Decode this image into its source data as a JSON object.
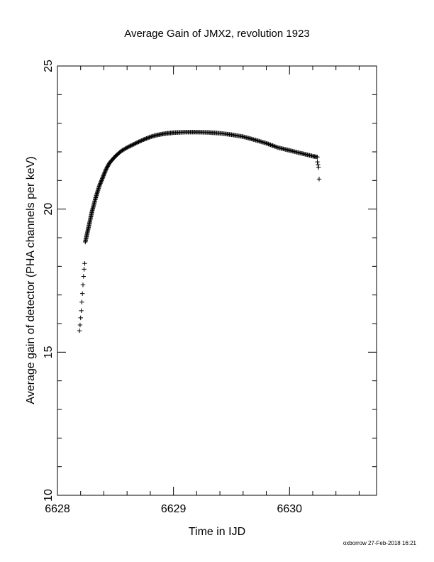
{
  "chart_data": {
    "type": "scatter",
    "title": "Average Gain of JMX2, revolution 1923",
    "xlabel": "Time in IJD",
    "ylabel": "Average gain of detector (PHA channels per keV)",
    "xlim": [
      6628,
      6630.75
    ],
    "ylim": [
      10,
      25
    ],
    "xticks": [
      6628,
      6629,
      6630
    ],
    "yticks": [
      10,
      15,
      20,
      25
    ],
    "marker": "+",
    "grid": false,
    "credit": "oxborrow 27-Feb-2018 16:21",
    "curve": [
      [
        6628.24,
        18.85
      ],
      [
        6628.27,
        19.4
      ],
      [
        6628.3,
        19.95
      ],
      [
        6628.33,
        20.4
      ],
      [
        6628.36,
        20.8
      ],
      [
        6628.39,
        21.1
      ],
      [
        6628.42,
        21.4
      ],
      [
        6628.45,
        21.62
      ],
      [
        6628.5,
        21.85
      ],
      [
        6628.55,
        22.03
      ],
      [
        6628.6,
        22.15
      ],
      [
        6628.65,
        22.25
      ],
      [
        6628.7,
        22.35
      ],
      [
        6628.75,
        22.44
      ],
      [
        6628.8,
        22.52
      ],
      [
        6628.85,
        22.58
      ],
      [
        6628.9,
        22.62
      ],
      [
        6628.95,
        22.65
      ],
      [
        6629.0,
        22.67
      ],
      [
        6629.1,
        22.69
      ],
      [
        6629.2,
        22.69
      ],
      [
        6629.3,
        22.68
      ],
      [
        6629.4,
        22.65
      ],
      [
        6629.5,
        22.6
      ],
      [
        6629.6,
        22.53
      ],
      [
        6629.7,
        22.42
      ],
      [
        6629.8,
        22.3
      ],
      [
        6629.9,
        22.15
      ],
      [
        6630.0,
        22.05
      ],
      [
        6630.1,
        21.95
      ],
      [
        6630.2,
        21.85
      ],
      [
        6630.24,
        21.82
      ]
    ],
    "points": [
      [
        6628.19,
        15.75
      ],
      [
        6628.195,
        15.95
      ],
      [
        6628.2,
        16.2
      ],
      [
        6628.205,
        16.45
      ],
      [
        6628.21,
        16.75
      ],
      [
        6628.215,
        17.05
      ],
      [
        6628.22,
        17.35
      ],
      [
        6628.225,
        17.65
      ],
      [
        6628.23,
        17.9
      ],
      [
        6628.235,
        18.1
      ],
      [
        6630.24,
        21.65
      ],
      [
        6630.245,
        21.55
      ],
      [
        6630.25,
        21.45
      ],
      [
        6630.255,
        21.05
      ]
    ]
  }
}
